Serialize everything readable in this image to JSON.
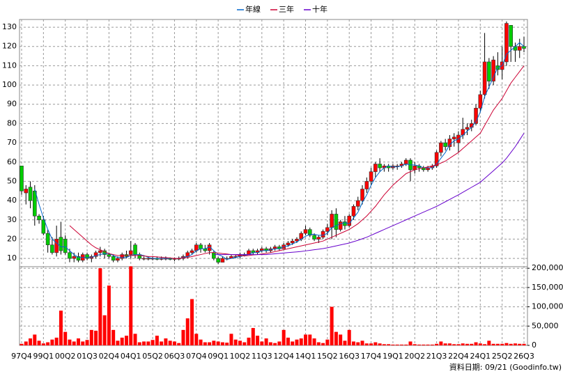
{
  "chart_data": {
    "type": "candlestick",
    "categories": [
      "97Q4",
      null,
      null,
      null,
      null,
      "99Q1",
      null,
      null,
      null,
      null,
      "00Q2",
      null,
      null,
      null,
      null,
      "01Q3",
      null,
      null,
      null,
      null,
      "02Q4",
      null,
      null,
      null,
      null,
      "04Q1",
      null,
      null,
      null,
      null,
      "05Q2",
      null,
      null,
      null,
      null,
      "06Q3",
      null,
      null,
      null,
      null,
      "07Q4",
      null,
      null,
      null,
      null,
      "09Q1",
      null,
      null,
      null,
      null,
      "10Q2",
      null,
      null,
      null,
      null,
      "11Q3",
      null,
      null,
      null,
      null,
      "12Q4",
      null,
      null,
      null,
      null,
      "14Q1",
      null,
      null,
      null,
      null,
      "15Q2",
      null,
      null,
      null,
      null,
      "16Q3",
      null,
      null,
      null,
      null,
      "17Q4",
      null,
      null,
      null,
      null,
      "19Q1",
      null,
      null,
      null,
      null,
      "20Q2",
      null,
      null,
      null,
      null,
      "21Q3",
      null,
      null,
      null,
      null,
      "22Q4",
      null,
      null,
      null,
      null,
      "24Q1",
      null,
      null,
      null,
      null,
      "25Q2",
      null,
      null,
      null,
      null,
      "26Q3"
    ],
    "open": [
      58,
      44,
      47,
      45,
      32,
      30,
      23,
      17,
      13,
      21,
      20,
      13,
      10,
      11,
      9,
      12,
      10,
      11,
      13,
      14,
      12,
      11,
      9,
      10,
      12,
      12,
      17,
      12,
      10,
      10,
      10,
      10,
      9.5,
      10,
      10,
      9.5,
      10,
      10,
      11,
      13,
      14,
      17,
      15,
      14,
      13,
      10,
      8,
      10,
      10,
      11,
      11,
      12,
      12,
      14,
      13,
      14,
      15,
      14,
      15,
      16,
      15,
      17,
      18,
      19,
      20,
      23,
      25,
      22,
      20,
      21,
      24,
      26,
      33,
      25,
      29,
      27,
      32,
      37,
      40,
      46,
      50,
      55,
      59,
      57,
      58,
      57,
      58,
      58,
      59,
      61,
      56,
      58,
      57,
      56,
      57,
      58,
      65,
      70,
      68,
      72,
      70,
      74,
      77,
      78,
      80,
      88,
      95,
      112,
      102,
      110,
      108,
      112,
      131,
      120,
      118,
      120
    ],
    "high": [
      58,
      48,
      50,
      48,
      33,
      32,
      25,
      21,
      27,
      29,
      22,
      15,
      13,
      13,
      13,
      13,
      12,
      14,
      16,
      15,
      13,
      12,
      11,
      13,
      14,
      19,
      18,
      13,
      11,
      11,
      11,
      11,
      11,
      11,
      10.5,
      10.5,
      11,
      12,
      14,
      15,
      18,
      18,
      17,
      18,
      14,
      11,
      11,
      11,
      12,
      12,
      13,
      13,
      15,
      15,
      15,
      16,
      16,
      16,
      17,
      17,
      18,
      19,
      20,
      21,
      24,
      27,
      26,
      23,
      22,
      25,
      28,
      35,
      36,
      30,
      32,
      33,
      38,
      42,
      48,
      52,
      57,
      60,
      62,
      59,
      59,
      59,
      59,
      60,
      62,
      62,
      60,
      59,
      58,
      58,
      59,
      66,
      71,
      72,
      74,
      75,
      76,
      83,
      80,
      82,
      90,
      97,
      127,
      114,
      115,
      117,
      120,
      133,
      131,
      122,
      124,
      125
    ],
    "low": [
      43,
      38,
      36,
      27,
      28,
      22,
      13,
      12,
      11,
      12,
      12,
      8,
      8,
      8,
      8,
      9,
      8,
      10,
      11,
      10,
      10,
      8,
      8,
      9,
      10,
      10,
      10,
      9,
      9,
      9,
      9,
      9,
      9,
      9,
      9,
      8.5,
      9,
      9,
      10,
      12,
      13,
      13,
      13,
      12,
      9,
      7,
      8,
      9,
      10,
      10,
      10,
      11,
      12,
      12,
      12,
      13,
      13,
      13,
      14,
      14,
      15,
      16,
      17,
      18,
      19,
      22,
      21,
      19,
      18,
      20,
      22,
      20,
      21,
      24,
      25,
      26,
      30,
      35,
      38,
      44,
      48,
      52,
      55,
      55,
      55,
      56,
      56,
      57,
      58,
      50,
      54,
      55,
      55,
      55,
      56,
      57,
      63,
      66,
      66,
      68,
      65,
      72,
      74,
      76,
      79,
      86,
      93,
      98,
      100,
      105,
      103,
      110,
      112,
      112,
      114,
      117
    ],
    "close": [
      45,
      46,
      40,
      32,
      30,
      23,
      17,
      13,
      20,
      14,
      13,
      10,
      11,
      9,
      12,
      10,
      11,
      13,
      14,
      12,
      11,
      9,
      10,
      12,
      11,
      14,
      12,
      10,
      10,
      10,
      10,
      9.5,
      10,
      10,
      9.5,
      10,
      10,
      11,
      13,
      14,
      17,
      15,
      14,
      17,
      10,
      8,
      10,
      10,
      11,
      11,
      12,
      12,
      14,
      13,
      14,
      15,
      14,
      15,
      16,
      15,
      17,
      18,
      19,
      20,
      23,
      25,
      22,
      20,
      21,
      24,
      26,
      33,
      25,
      29,
      27,
      32,
      37,
      40,
      46,
      50,
      55,
      59,
      57,
      58,
      57,
      58,
      58,
      59,
      61,
      56,
      58,
      57,
      56,
      57,
      58,
      65,
      70,
      68,
      72,
      73,
      74,
      77,
      78,
      80,
      88,
      95,
      112,
      102,
      113,
      108,
      112,
      132,
      120,
      118,
      120,
      119
    ],
    "up_color": "#ff0000",
    "down_color": "#00cc00",
    "ylim": [
      5.7,
      134
    ],
    "yticks": [
      10,
      20,
      30,
      40,
      50,
      60,
      70,
      80,
      90,
      100,
      110,
      120,
      130
    ],
    "grid": true,
    "series": [
      {
        "name": "年線",
        "color": "#0066cc",
        "values": [
          null,
          null,
          null,
          46,
          38,
          31,
          25,
          20,
          18,
          16,
          16,
          14,
          12,
          10.5,
          10.5,
          10.5,
          10.5,
          11.5,
          12,
          12.5,
          12.5,
          11.5,
          10.5,
          10.5,
          10.5,
          11.5,
          12,
          12,
          11.5,
          10.5,
          10,
          10,
          10,
          10,
          10,
          10,
          10,
          10.5,
          11,
          12,
          14,
          15,
          15,
          16,
          14,
          12,
          11,
          9.5,
          10,
          10.5,
          11,
          11.5,
          12,
          13,
          13,
          14,
          14,
          14.5,
          15,
          15,
          16,
          16.5,
          17.5,
          18.5,
          20,
          21.5,
          22.5,
          22.5,
          22,
          22,
          23,
          26,
          27,
          28,
          28.5,
          28,
          31,
          34,
          39,
          43,
          48,
          52,
          55,
          57,
          58,
          57.5,
          57.5,
          58,
          59,
          58.5,
          58.5,
          58,
          57,
          57,
          57,
          59,
          62,
          65,
          69,
          71,
          72,
          74,
          76,
          78,
          81,
          86,
          94,
          99,
          104,
          109,
          110,
          116,
          118,
          120,
          122,
          120
        ]
      },
      {
        "name": "三年",
        "color": "#cc0033",
        "values": [
          null,
          null,
          null,
          null,
          null,
          null,
          null,
          null,
          null,
          null,
          null,
          27,
          25,
          23,
          21,
          19,
          17,
          15.5,
          14.5,
          13.5,
          12.5,
          12,
          11.5,
          11.5,
          11.5,
          11.5,
          11.5,
          11.5,
          11.3,
          11,
          11,
          10.8,
          10.6,
          10.4,
          10.2,
          10,
          10,
          10.2,
          10.5,
          11,
          11.5,
          12,
          12.5,
          13,
          13,
          12.8,
          12.5,
          12.3,
          12,
          11.8,
          11.5,
          11.3,
          11.5,
          11.8,
          12,
          12.3,
          12.6,
          13,
          13.5,
          14,
          14.5,
          15,
          15.5,
          16,
          16.5,
          17,
          17.5,
          18,
          18.5,
          19,
          20,
          21,
          22,
          23,
          24,
          25,
          26.5,
          28,
          30,
          32,
          34.5,
          37,
          40,
          43,
          45.5,
          48,
          50,
          52,
          54,
          55,
          56,
          56.5,
          57,
          57.5,
          58,
          58.5,
          59.5,
          60.5,
          62,
          63.5,
          65,
          67,
          69,
          71,
          73,
          75,
          79,
          83,
          87,
          90,
          93,
          97,
          101,
          104,
          107,
          110
        ]
      },
      {
        "name": "十年",
        "color": "#6600cc",
        "values": [
          null,
          null,
          null,
          null,
          null,
          null,
          null,
          null,
          null,
          null,
          null,
          null,
          null,
          null,
          null,
          null,
          null,
          null,
          null,
          null,
          null,
          null,
          null,
          null,
          null,
          null,
          null,
          null,
          null,
          null,
          null,
          null,
          null,
          null,
          null,
          null,
          null,
          null,
          null,
          null,
          null,
          null,
          null,
          null,
          12,
          12,
          12,
          12,
          12,
          12,
          12,
          12,
          12,
          12,
          12,
          12,
          12,
          12.2,
          12.4,
          12.6,
          12.8,
          13,
          13.2,
          13.4,
          13.6,
          13.9,
          14.2,
          14.5,
          14.8,
          15.1,
          15.5,
          16,
          16.5,
          17,
          17.5,
          18,
          18.7,
          19.4,
          20.2,
          21,
          22,
          23,
          24,
          25,
          26,
          27,
          28,
          29,
          30,
          31,
          32,
          33,
          34,
          35,
          36,
          37,
          38.2,
          39.4,
          40.6,
          41.8,
          43,
          44.3,
          45.6,
          46.9,
          48.2,
          49.5,
          51.5,
          53.5,
          55.5,
          57.5,
          59.5,
          62,
          65,
          68,
          71.5,
          75
        ]
      }
    ],
    "volume": {
      "color": "#ff0000",
      "ylim": [
        0,
        204000
      ],
      "yticks": [
        0,
        {
          "value": 50000,
          "label": "50,000"
        },
        {
          "value": 100000,
          "label": "100,000"
        },
        {
          "value": 150000,
          "label": "150,000"
        },
        {
          "value": 200000,
          "label": "200,000"
        }
      ],
      "values": [
        4000,
        10000,
        18000,
        28000,
        12000,
        5000,
        8000,
        15000,
        20000,
        90000,
        35000,
        15000,
        10000,
        18000,
        10000,
        14000,
        40000,
        38000,
        200000,
        78000,
        155000,
        40000,
        12000,
        20000,
        25000,
        205000,
        30000,
        8000,
        10000,
        10000,
        14000,
        25000,
        10000,
        18000,
        12000,
        10000,
        6000,
        40000,
        70000,
        120000,
        30000,
        15000,
        8000,
        8000,
        12000,
        10000,
        8000,
        7000,
        30000,
        15000,
        12000,
        8000,
        20000,
        45000,
        25000,
        10000,
        18000,
        8000,
        6000,
        10000,
        40000,
        20000,
        10000,
        15000,
        18000,
        28000,
        28000,
        18000,
        8000,
        6000,
        15000,
        100000,
        35000,
        28000,
        12000,
        40000,
        10000,
        8000,
        12000,
        5000,
        5000,
        8000,
        5000,
        3000,
        3000,
        2000,
        2000,
        2000,
        2000,
        10000,
        3000,
        2000,
        2000,
        2000,
        2000,
        4000,
        10000,
        5000,
        5000,
        3000,
        3000,
        5000,
        4000,
        4000,
        8000,
        5000,
        3000,
        12000,
        4000,
        4000,
        4000,
        6000,
        4000,
        5000,
        4000,
        4000
      ]
    },
    "footer": "資料日期: 09/21 (Goodinfo.tw)"
  }
}
